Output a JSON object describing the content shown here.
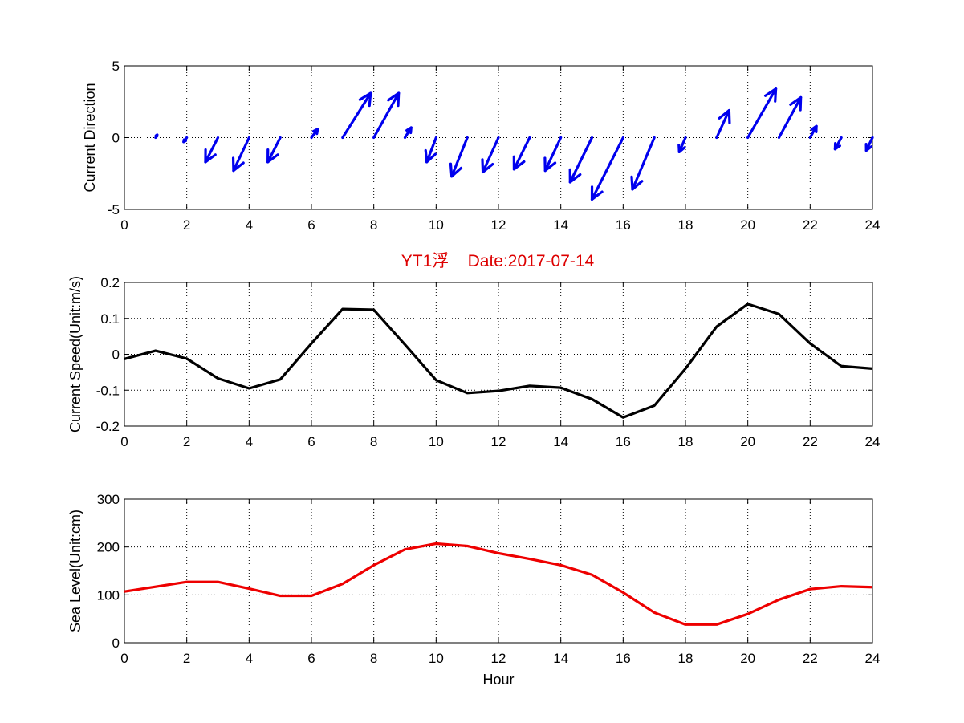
{
  "title": "YT1浮    Date:2017-07-14",
  "colors": {
    "direction": "#0000ee",
    "speed": "#000000",
    "sea_level": "#ee0000",
    "title": "#dd0000"
  },
  "chart_data": [
    {
      "type": "quiver",
      "ylabel": "Current Direction",
      "xlim": [
        0,
        24
      ],
      "ylim": [
        -5,
        5
      ],
      "xticks": [
        0,
        2,
        4,
        6,
        8,
        10,
        12,
        14,
        16,
        18,
        20,
        22,
        24
      ],
      "yticks": [
        -5,
        0,
        5
      ],
      "grid": true,
      "x": [
        1,
        2,
        3,
        4,
        5,
        6,
        7,
        8,
        9,
        10,
        11,
        12,
        13,
        14,
        15,
        16,
        17,
        18,
        19,
        20,
        21,
        22,
        23,
        24
      ],
      "u": [
        0.05,
        -0.1,
        -0.4,
        -0.5,
        -0.4,
        0.2,
        0.9,
        0.8,
        0.2,
        -0.3,
        -0.5,
        -0.5,
        -0.5,
        -0.5,
        -0.7,
        -1.0,
        -0.7,
        -0.2,
        0.4,
        0.9,
        0.7,
        0.2,
        -0.2,
        -0.2
      ],
      "v": [
        0.2,
        -0.3,
        -1.7,
        -2.3,
        -1.7,
        0.6,
        3.1,
        3.1,
        0.7,
        -1.7,
        -2.7,
        -2.4,
        -2.2,
        -2.3,
        -3.1,
        -4.3,
        -3.6,
        -1.0,
        1.9,
        3.4,
        2.8,
        0.8,
        -0.8,
        -0.9
      ]
    },
    {
      "type": "line",
      "ylabel": "Current Speed(Unit:m/s)",
      "xlim": [
        0,
        24
      ],
      "ylim": [
        -0.2,
        0.2
      ],
      "xticks": [
        0,
        2,
        4,
        6,
        8,
        10,
        12,
        14,
        16,
        18,
        20,
        22,
        24
      ],
      "yticks": [
        -0.2,
        -0.1,
        0,
        0.1,
        0.2
      ],
      "ytick_labels": [
        "-0.2",
        "-0.1",
        "0",
        "0.1",
        "0.2"
      ],
      "grid": true,
      "x": [
        0,
        1,
        2,
        3,
        4,
        5,
        6,
        7,
        8,
        9,
        10,
        11,
        12,
        13,
        14,
        15,
        16,
        17,
        18,
        19,
        20,
        21,
        22,
        23,
        24
      ],
      "y": [
        -0.013,
        0.01,
        -0.012,
        -0.067,
        -0.095,
        -0.07,
        0.03,
        0.126,
        0.124,
        0.027,
        -0.072,
        -0.108,
        -0.102,
        -0.088,
        -0.093,
        -0.125,
        -0.176,
        -0.143,
        -0.04,
        0.077,
        0.14,
        0.112,
        0.03,
        -0.033,
        -0.04
      ]
    },
    {
      "type": "line",
      "ylabel": "Sea Level(Unit:cm)",
      "xlabel": "Hour",
      "xlim": [
        0,
        24
      ],
      "ylim": [
        0,
        300
      ],
      "xticks": [
        0,
        2,
        4,
        6,
        8,
        10,
        12,
        14,
        16,
        18,
        20,
        22,
        24
      ],
      "yticks": [
        0,
        100,
        200,
        300
      ],
      "grid": true,
      "x": [
        0,
        1,
        2,
        3,
        4,
        5,
        6,
        7,
        8,
        9,
        10,
        11,
        12,
        13,
        14,
        15,
        16,
        17,
        18,
        19,
        20,
        21,
        22,
        23,
        24
      ],
      "y": [
        107,
        117,
        127,
        127,
        113,
        98,
        98,
        123,
        162,
        195,
        207,
        202,
        187,
        175,
        162,
        142,
        105,
        63,
        38,
        38,
        60,
        90,
        112,
        118,
        116
      ]
    }
  ]
}
